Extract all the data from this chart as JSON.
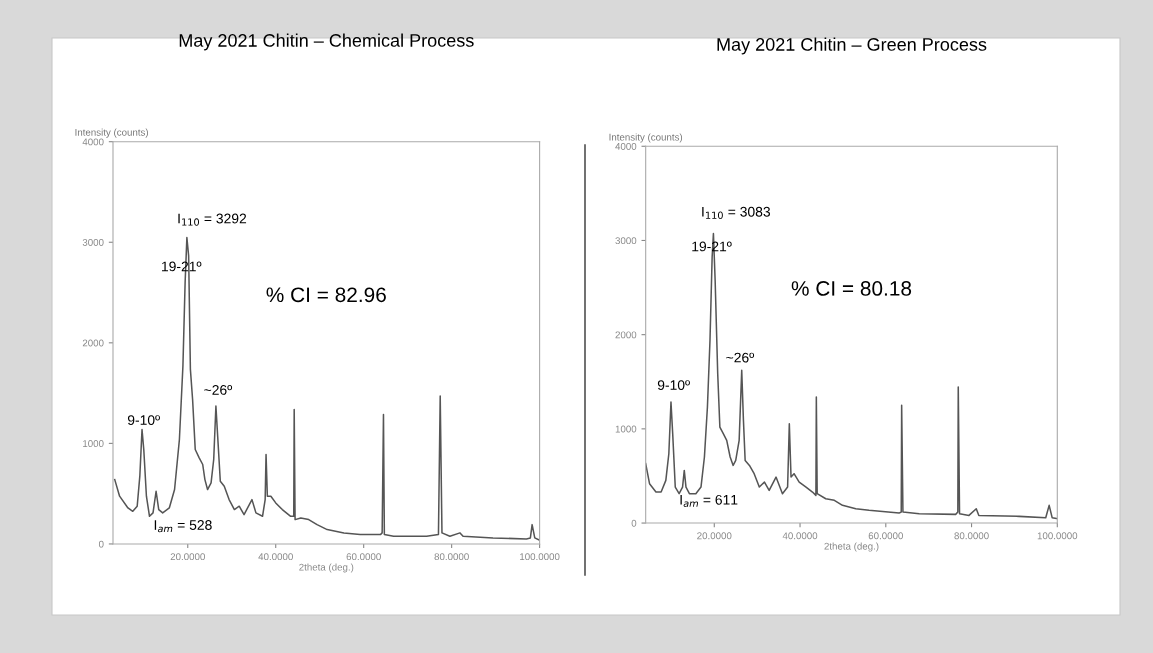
{
  "chart_data": [
    {
      "type": "line",
      "title": "May 2021 Chitin – Chemical Process",
      "xlabel": "2theta (deg.)",
      "ylabel": "Intensity (counts)",
      "xlim": [
        3,
        100
      ],
      "ylim": [
        0,
        4000
      ],
      "xticks": [
        {
          "value": 20,
          "label": "20.0000"
        },
        {
          "value": 40,
          "label": "40.0000"
        },
        {
          "value": 60,
          "label": "60.0000"
        },
        {
          "value": 80,
          "label": "80.0000"
        },
        {
          "value": 100,
          "label": "100.0000"
        }
      ],
      "yticks": [
        0,
        1000,
        2000,
        3000,
        4000
      ],
      "x": [
        3.4,
        4.5,
        6.4,
        7.5,
        8.5,
        9.1,
        9.6,
        10.0,
        10.6,
        11.3,
        12.1,
        12.8,
        13.4,
        14.3,
        15.8,
        17.0,
        18.1,
        18.9,
        19.4,
        19.8,
        20.2,
        20.6,
        21.1,
        21.7,
        22.6,
        23.4,
        23.9,
        24.5,
        25.3,
        25.9,
        26.4,
        26.8,
        27.4,
        28.3,
        29.4,
        30.6,
        31.7,
        32.8,
        34.6,
        35.5,
        37.0,
        37.6,
        37.8,
        38.1,
        38.9,
        40.0,
        41.5,
        43.4,
        44.1,
        44.2,
        44.4,
        45.7,
        47.5,
        49.4,
        51.7,
        55.5,
        59.2,
        63.8,
        64.2,
        64.5,
        64.7,
        66.8,
        74.3,
        77.0,
        77.4,
        77.8,
        79.6,
        81.9,
        82.6,
        89.4,
        97.0,
        97.9,
        98.3,
        98.9,
        100.0
      ],
      "series": [
        {
          "color": "#555555",
          "values": [
            640,
            475,
            358,
            325,
            375,
            674,
            1138,
            939,
            475,
            275,
            309,
            524,
            342,
            309,
            358,
            541,
            1039,
            1769,
            2599,
            3047,
            2864,
            1736,
            1437,
            939,
            856,
            790,
            640,
            541,
            607,
            840,
            1371,
            1072,
            624,
            574,
            441,
            342,
            375,
            292,
            441,
            309,
            275,
            441,
            889,
            475,
            475,
            408,
            342,
            275,
            275,
            1337,
            242,
            259,
            242,
            192,
            143,
            110,
            93,
            93,
            110,
            1288,
            93,
            76,
            76,
            93,
            1470,
            110,
            76,
            110,
            76,
            60,
            50,
            60,
            192,
            60,
            37
          ]
        }
      ],
      "annotations": [
        "I$_{110}$ = 3292",
        "19-21º",
        "% CI = 82.96",
        "~26º",
        "9-10º",
        "I$_{am}$ = 528"
      ]
    },
    {
      "type": "line",
      "title": "May 2021 Chitin – Green Process",
      "xlabel": "2theta (deg.)",
      "ylabel": "Intensity (counts)",
      "xlim": [
        4,
        100
      ],
      "ylim": [
        0,
        4000
      ],
      "xticks": [
        {
          "value": 20,
          "label": "20.0000"
        },
        {
          "value": 40,
          "label": "40.0000"
        },
        {
          "value": 60,
          "label": "60.0000"
        },
        {
          "value": 80,
          "label": "80.0000"
        },
        {
          "value": 100,
          "label": "100.0000"
        }
      ],
      "yticks": [
        0,
        1000,
        2000,
        3000,
        4000
      ],
      "x": [
        4.0,
        4.9,
        6.4,
        7.6,
        8.7,
        9.4,
        9.9,
        10.3,
        10.9,
        11.8,
        12.6,
        13.0,
        13.4,
        14.2,
        15.7,
        16.9,
        17.7,
        18.4,
        19.0,
        19.5,
        19.8,
        20.2,
        20.8,
        21.3,
        22.1,
        22.9,
        23.7,
        24.4,
        25.0,
        25.8,
        26.4,
        26.8,
        27.2,
        28.2,
        29.3,
        30.5,
        31.7,
        32.8,
        34.4,
        35.9,
        37.1,
        37.5,
        37.9,
        38.6,
        39.8,
        41.4,
        42.9,
        43.7,
        43.8,
        44.0,
        46.0,
        48.0,
        49.9,
        53.0,
        56.1,
        63.1,
        63.6,
        63.7,
        64.0,
        67.8,
        76.3,
        76.8,
        76.9,
        77.2,
        79.4,
        81.1,
        81.7,
        91.1,
        97.3,
        98.1,
        98.8,
        100.0
      ],
      "series": [
        {
          "color": "#555555",
          "values": [
            630,
            418,
            329,
            329,
            453,
            736,
            1285,
            949,
            382,
            312,
            382,
            559,
            382,
            312,
            312,
            382,
            701,
            1232,
            1940,
            2825,
            3073,
            2577,
            1586,
            1019,
            949,
            878,
            701,
            612,
            665,
            878,
            1621,
            1090,
            665,
            612,
            524,
            382,
            435,
            347,
            488,
            312,
            382,
            1055,
            488,
            524,
            435,
            382,
            329,
            294,
            1338,
            312,
            258,
            241,
            188,
            152,
            135,
            106,
            117,
            1250,
            117,
            99,
            92,
            117,
            1444,
            99,
            81,
            152,
            81,
            71,
            57,
            188,
            57,
            46
          ]
        }
      ],
      "annotations": [
        "I$_{110}$ = 3083",
        "19-21º",
        "% CI = 80.18",
        "~26º",
        "9-10º",
        "I$_{am}$ = 611"
      ]
    }
  ]
}
